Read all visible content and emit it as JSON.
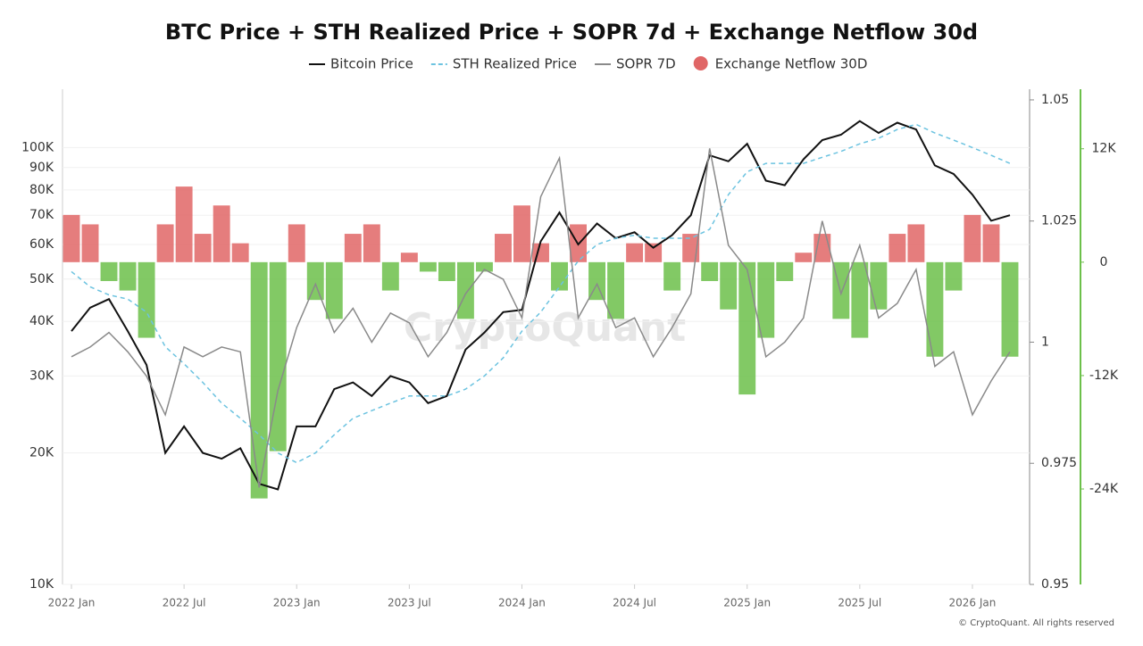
{
  "chart_data": {
    "type": "multi-axis-line-bar",
    "title": "BTC Price + STH Realized Price + SOPR 7d + Exchange Netflow 30d",
    "watermark": "CryptoQuant",
    "footer": "© CryptoQuant. All rights reserved",
    "x": [
      "2022-01",
      "2022-02",
      "2022-03",
      "2022-04",
      "2022-05",
      "2022-06",
      "2022-07",
      "2022-08",
      "2022-09",
      "2022-10",
      "2022-11",
      "2022-12",
      "2023-01",
      "2023-02",
      "2023-03",
      "2023-04",
      "2023-05",
      "2023-06",
      "2023-07",
      "2023-08",
      "2023-09",
      "2023-10",
      "2023-11",
      "2023-12",
      "2024-01",
      "2024-02",
      "2024-03",
      "2024-04",
      "2024-05",
      "2024-06",
      "2024-07",
      "2024-08",
      "2024-09",
      "2024-10",
      "2024-11",
      "2024-12",
      "2025-01",
      "2025-02",
      "2025-03",
      "2025-04",
      "2025-05",
      "2025-06",
      "2025-07",
      "2025-08",
      "2025-09",
      "2025-10",
      "2025-11",
      "2025-12",
      "2026-01",
      "2026-02",
      "2026-03"
    ],
    "xticks": [
      {
        "value": "2022-01",
        "label": "2022 Jan"
      },
      {
        "value": "2022-07",
        "label": "2022 Jul"
      },
      {
        "value": "2023-01",
        "label": "2023 Jan"
      },
      {
        "value": "2023-07",
        "label": "2023 Jul"
      },
      {
        "value": "2024-01",
        "label": "2024 Jan"
      },
      {
        "value": "2024-07",
        "label": "2024 Jul"
      },
      {
        "value": "2025-01",
        "label": "2025 Jan"
      },
      {
        "value": "2025-07",
        "label": "2025 Jul"
      },
      {
        "value": "2026-01",
        "label": "2026 Jan"
      }
    ],
    "ylim": [
      10000,
      136000
    ],
    "log_y": true,
    "yticks": [
      {
        "value": 10000,
        "label": "10K"
      },
      {
        "value": 20000,
        "label": "20K"
      },
      {
        "value": 30000,
        "label": "30K"
      },
      {
        "value": 40000,
        "label": "40K"
      },
      {
        "value": 50000,
        "label": "50K"
      },
      {
        "value": 60000,
        "label": "60K"
      },
      {
        "value": 70000,
        "label": "70K"
      },
      {
        "value": 80000,
        "label": "80K"
      },
      {
        "value": 90000,
        "label": "90K"
      },
      {
        "value": 100000,
        "label": "100K"
      }
    ],
    "y2lim": [
      0.95,
      1.0522
    ],
    "y2ticks": [
      0.95,
      0.975,
      1,
      1.025,
      1.05
    ],
    "y3lim": [
      -34100,
      18300
    ],
    "y3ticks": [
      {
        "value": -24000,
        "label": "-24K"
      },
      {
        "value": -12000,
        "label": "-12K"
      },
      0,
      {
        "value": 12000,
        "label": "12K"
      }
    ],
    "series": [
      {
        "name": "Bitcoin Price",
        "kind": "line",
        "color": "#111111",
        "axis": "y",
        "values": [
          38000,
          43000,
          45000,
          38000,
          31800,
          20000,
          23000,
          20000,
          19400,
          20500,
          17000,
          16500,
          23000,
          23000,
          28000,
          29000,
          27000,
          30000,
          29000,
          26000,
          27000,
          34500,
          37700,
          42000,
          42500,
          61000,
          71000,
          60000,
          67000,
          62000,
          64000,
          59000,
          63000,
          70000,
          96000,
          93000,
          102000,
          84000,
          82000,
          94000,
          104000,
          107000,
          115000,
          108000,
          114000,
          110000,
          91000,
          87000,
          78000,
          68000,
          70000
        ]
      },
      {
        "name": "STH Realized Price",
        "kind": "dashed",
        "color": "#6cc3e0",
        "axis": "y",
        "values": [
          52000,
          48000,
          46000,
          45000,
          42000,
          35000,
          32000,
          29000,
          26000,
          24000,
          22000,
          20000,
          19000,
          20000,
          22000,
          24000,
          25000,
          26000,
          27000,
          27000,
          27000,
          28000,
          30000,
          33000,
          38000,
          42000,
          48000,
          55000,
          60000,
          62000,
          63000,
          62000,
          62000,
          62000,
          65000,
          78000,
          88000,
          92000,
          92000,
          92000,
          95000,
          98000,
          102000,
          105000,
          110000,
          113000,
          108000,
          104000,
          100000,
          96000,
          92000
        ]
      },
      {
        "name": "SOPR 7D",
        "kind": "line",
        "color": "#8a8a8a",
        "axis": "y2",
        "values": [
          0.997,
          0.999,
          1.002,
          0.998,
          0.993,
          0.985,
          0.999,
          0.997,
          0.999,
          0.998,
          0.97,
          0.99,
          1.003,
          1.012,
          1.002,
          1.007,
          1.0,
          1.006,
          1.004,
          0.997,
          1.002,
          1.01,
          1.015,
          1.013,
          1.005,
          1.03,
          1.038,
          1.005,
          1.012,
          1.003,
          1.005,
          0.997,
          1.003,
          1.01,
          1.04,
          1.02,
          1.015,
          0.997,
          1.0,
          1.005,
          1.025,
          1.01,
          1.02,
          1.005,
          1.008,
          1.015,
          0.995,
          0.998,
          0.985,
          0.992,
          0.998
        ]
      },
      {
        "name": "Exchange Netflow 30D",
        "kind": "bar",
        "color": "#e06666",
        "negative_color": "#6cc04a",
        "axis": "y3",
        "values": [
          5000,
          4000,
          -2000,
          -3000,
          -8000,
          4000,
          8000,
          3000,
          6000,
          2000,
          -25000,
          -20000,
          4000,
          -4000,
          -6000,
          3000,
          4000,
          -3000,
          1000,
          -1000,
          -2000,
          -6000,
          -1000,
          3000,
          6000,
          2000,
          -3000,
          4000,
          -4000,
          -6000,
          2000,
          2000,
          -3000,
          3000,
          -2000,
          -5000,
          -14000,
          -8000,
          -2000,
          1000,
          3000,
          -6000,
          -8000,
          -5000,
          3000,
          4000,
          -10000,
          -3000,
          5000,
          4000,
          -10000
        ]
      }
    ]
  }
}
